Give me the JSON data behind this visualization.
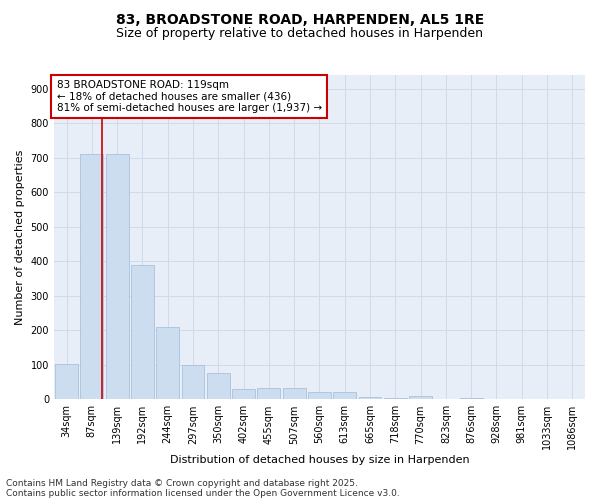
{
  "title_line1": "83, BROADSTONE ROAD, HARPENDEN, AL5 1RE",
  "title_line2": "Size of property relative to detached houses in Harpenden",
  "xlabel": "Distribution of detached houses by size in Harpenden",
  "ylabel": "Number of detached properties",
  "categories": [
    "34sqm",
    "87sqm",
    "139sqm",
    "192sqm",
    "244sqm",
    "297sqm",
    "350sqm",
    "402sqm",
    "455sqm",
    "507sqm",
    "560sqm",
    "613sqm",
    "665sqm",
    "718sqm",
    "770sqm",
    "823sqm",
    "876sqm",
    "928sqm",
    "981sqm",
    "1033sqm",
    "1086sqm"
  ],
  "values": [
    103,
    710,
    710,
    390,
    210,
    100,
    75,
    30,
    33,
    33,
    22,
    22,
    8,
    5,
    10,
    0,
    5,
    0,
    0,
    0,
    0
  ],
  "bar_color": "#ccddf0",
  "bar_edgecolor": "#a0bbda",
  "annotation_text": "83 BROADSTONE ROAD: 119sqm\n← 18% of detached houses are smaller (436)\n81% of semi-detached houses are larger (1,937) →",
  "annotation_box_color": "#ffffff",
  "annotation_box_edgecolor": "#cc0000",
  "vline_color": "#cc0000",
  "vline_x": 1.42,
  "ylim": [
    0,
    940
  ],
  "yticks": [
    0,
    100,
    200,
    300,
    400,
    500,
    600,
    700,
    800,
    900
  ],
  "grid_color": "#d0dae8",
  "bg_color": "#e8eef8",
  "footer_line1": "Contains HM Land Registry data © Crown copyright and database right 2025.",
  "footer_line2": "Contains public sector information licensed under the Open Government Licence v3.0.",
  "title_fontsize": 10,
  "subtitle_fontsize": 9,
  "axis_label_fontsize": 8,
  "tick_fontsize": 7,
  "annotation_fontsize": 7.5,
  "footer_fontsize": 6.5
}
